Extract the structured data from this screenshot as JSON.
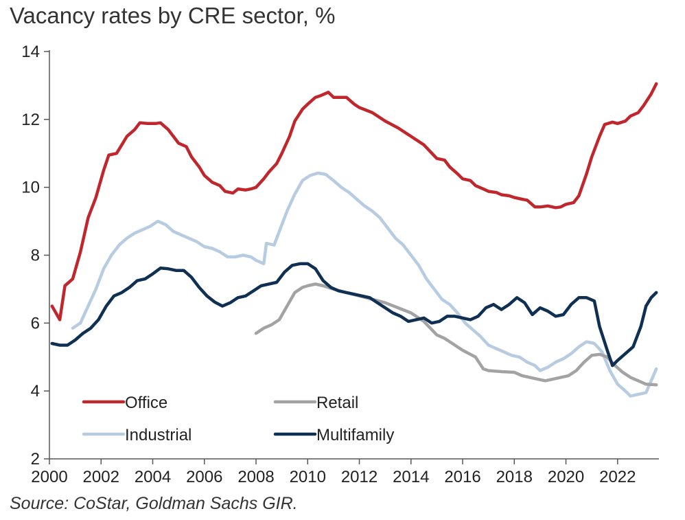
{
  "chart_data": {
    "type": "line",
    "title": "Vacancy rates by CRE sector, %",
    "source": "Source: CoStar, Goldman Sachs GIR.",
    "xlim": [
      2000,
      2023.6
    ],
    "ylim": [
      2,
      14
    ],
    "x_ticks": [
      "2000",
      "2002",
      "2004",
      "2006",
      "2008",
      "2010",
      "2012",
      "2014",
      "2016",
      "2018",
      "2020",
      "2022"
    ],
    "y_ticks": [
      "2",
      "4",
      "6",
      "8",
      "10",
      "12",
      "14"
    ],
    "legend_position": "bottom-left",
    "series": [
      {
        "name": "Office",
        "color": "#c0272d",
        "points": [
          [
            2000.1,
            6.5
          ],
          [
            2000.4,
            6.1
          ],
          [
            2000.6,
            7.1
          ],
          [
            2000.9,
            7.3
          ],
          [
            2001.2,
            8.1
          ],
          [
            2001.5,
            9.1
          ],
          [
            2001.8,
            9.7
          ],
          [
            2002.1,
            10.5
          ],
          [
            2002.3,
            10.95
          ],
          [
            2002.6,
            11.0
          ],
          [
            2002.8,
            11.25
          ],
          [
            2003.0,
            11.5
          ],
          [
            2003.3,
            11.7
          ],
          [
            2003.5,
            11.9
          ],
          [
            2003.8,
            11.88
          ],
          [
            2004.1,
            11.88
          ],
          [
            2004.3,
            11.9
          ],
          [
            2004.6,
            11.7
          ],
          [
            2004.8,
            11.5
          ],
          [
            2005.0,
            11.3
          ],
          [
            2005.3,
            11.2
          ],
          [
            2005.5,
            10.9
          ],
          [
            2005.8,
            10.6
          ],
          [
            2006.0,
            10.35
          ],
          [
            2006.3,
            10.15
          ],
          [
            2006.6,
            10.05
          ],
          [
            2006.8,
            9.88
          ],
          [
            2007.1,
            9.83
          ],
          [
            2007.3,
            9.95
          ],
          [
            2007.6,
            9.92
          ],
          [
            2007.8,
            9.95
          ],
          [
            2008.0,
            10.0
          ],
          [
            2008.3,
            10.25
          ],
          [
            2008.5,
            10.45
          ],
          [
            2008.8,
            10.7
          ],
          [
            2009.0,
            11.0
          ],
          [
            2009.3,
            11.5
          ],
          [
            2009.5,
            11.95
          ],
          [
            2009.8,
            12.3
          ],
          [
            2010.0,
            12.45
          ],
          [
            2010.3,
            12.65
          ],
          [
            2010.5,
            12.7
          ],
          [
            2010.8,
            12.8
          ],
          [
            2011.0,
            12.65
          ],
          [
            2011.3,
            12.65
          ],
          [
            2011.5,
            12.65
          ],
          [
            2011.8,
            12.45
          ],
          [
            2012.0,
            12.35
          ],
          [
            2012.5,
            12.2
          ],
          [
            2013.0,
            11.95
          ],
          [
            2013.5,
            11.75
          ],
          [
            2014.0,
            11.5
          ],
          [
            2014.5,
            11.25
          ],
          [
            2015.0,
            10.85
          ],
          [
            2015.3,
            10.8
          ],
          [
            2015.5,
            10.6
          ],
          [
            2015.8,
            10.4
          ],
          [
            2016.0,
            10.25
          ],
          [
            2016.3,
            10.2
          ],
          [
            2016.5,
            10.05
          ],
          [
            2016.8,
            9.95
          ],
          [
            2017.0,
            9.88
          ],
          [
            2017.3,
            9.85
          ],
          [
            2017.5,
            9.78
          ],
          [
            2017.8,
            9.75
          ],
          [
            2018.0,
            9.7
          ],
          [
            2018.3,
            9.65
          ],
          [
            2018.5,
            9.62
          ],
          [
            2018.8,
            9.42
          ],
          [
            2019.0,
            9.42
          ],
          [
            2019.3,
            9.45
          ],
          [
            2019.6,
            9.4
          ],
          [
            2019.8,
            9.42
          ],
          [
            2020.0,
            9.5
          ],
          [
            2020.3,
            9.55
          ],
          [
            2020.5,
            9.75
          ],
          [
            2020.8,
            10.4
          ],
          [
            2021.0,
            10.9
          ],
          [
            2021.3,
            11.5
          ],
          [
            2021.5,
            11.85
          ],
          [
            2021.8,
            11.92
          ],
          [
            2022.0,
            11.88
          ],
          [
            2022.3,
            11.95
          ],
          [
            2022.5,
            12.1
          ],
          [
            2022.8,
            12.2
          ],
          [
            2023.0,
            12.4
          ],
          [
            2023.3,
            12.75
          ],
          [
            2023.5,
            13.05
          ]
        ]
      },
      {
        "name": "Retail",
        "color": "#a3a3a3",
        "points": [
          [
            2008.0,
            5.7
          ],
          [
            2008.3,
            5.85
          ],
          [
            2008.6,
            5.95
          ],
          [
            2008.9,
            6.1
          ],
          [
            2009.2,
            6.5
          ],
          [
            2009.5,
            6.9
          ],
          [
            2009.8,
            7.05
          ],
          [
            2010.0,
            7.1
          ],
          [
            2010.3,
            7.15
          ],
          [
            2010.6,
            7.1
          ],
          [
            2011.0,
            7.0
          ],
          [
            2011.5,
            6.9
          ],
          [
            2012.0,
            6.8
          ],
          [
            2012.5,
            6.7
          ],
          [
            2013.0,
            6.6
          ],
          [
            2013.5,
            6.45
          ],
          [
            2014.0,
            6.3
          ],
          [
            2014.5,
            6.05
          ],
          [
            2015.0,
            5.65
          ],
          [
            2015.3,
            5.55
          ],
          [
            2015.6,
            5.4
          ],
          [
            2016.0,
            5.2
          ],
          [
            2016.5,
            5.0
          ],
          [
            2016.8,
            4.65
          ],
          [
            2017.0,
            4.6
          ],
          [
            2017.5,
            4.57
          ],
          [
            2018.0,
            4.55
          ],
          [
            2018.3,
            4.45
          ],
          [
            2018.6,
            4.4
          ],
          [
            2018.9,
            4.35
          ],
          [
            2019.2,
            4.3
          ],
          [
            2019.5,
            4.35
          ],
          [
            2019.8,
            4.4
          ],
          [
            2020.1,
            4.45
          ],
          [
            2020.4,
            4.6
          ],
          [
            2020.7,
            4.85
          ],
          [
            2021.0,
            5.05
          ],
          [
            2021.3,
            5.08
          ],
          [
            2021.6,
            5.0
          ],
          [
            2021.9,
            4.75
          ],
          [
            2022.2,
            4.55
          ],
          [
            2022.5,
            4.4
          ],
          [
            2022.8,
            4.3
          ],
          [
            2023.1,
            4.2
          ],
          [
            2023.5,
            4.18
          ]
        ]
      },
      {
        "name": "Industrial",
        "color": "#b8cce1",
        "points": [
          [
            2000.9,
            5.85
          ],
          [
            2001.2,
            6.0
          ],
          [
            2001.5,
            6.5
          ],
          [
            2001.8,
            7.0
          ],
          [
            2002.1,
            7.6
          ],
          [
            2002.4,
            8.0
          ],
          [
            2002.7,
            8.3
          ],
          [
            2003.0,
            8.5
          ],
          [
            2003.3,
            8.65
          ],
          [
            2003.6,
            8.75
          ],
          [
            2003.9,
            8.85
          ],
          [
            2004.2,
            9.0
          ],
          [
            2004.5,
            8.9
          ],
          [
            2004.8,
            8.7
          ],
          [
            2005.1,
            8.6
          ],
          [
            2005.4,
            8.5
          ],
          [
            2005.7,
            8.4
          ],
          [
            2006.0,
            8.25
          ],
          [
            2006.3,
            8.2
          ],
          [
            2006.6,
            8.1
          ],
          [
            2006.9,
            7.95
          ],
          [
            2007.2,
            7.95
          ],
          [
            2007.5,
            8.0
          ],
          [
            2007.8,
            7.95
          ],
          [
            2008.0,
            7.85
          ],
          [
            2008.3,
            7.75
          ],
          [
            2008.4,
            8.35
          ],
          [
            2008.7,
            8.3
          ],
          [
            2008.9,
            8.7
          ],
          [
            2009.2,
            9.3
          ],
          [
            2009.5,
            9.8
          ],
          [
            2009.8,
            10.2
          ],
          [
            2010.1,
            10.35
          ],
          [
            2010.4,
            10.42
          ],
          [
            2010.7,
            10.38
          ],
          [
            2011.0,
            10.2
          ],
          [
            2011.3,
            10.0
          ],
          [
            2011.6,
            9.85
          ],
          [
            2011.9,
            9.65
          ],
          [
            2012.2,
            9.45
          ],
          [
            2012.5,
            9.3
          ],
          [
            2012.8,
            9.1
          ],
          [
            2013.1,
            8.8
          ],
          [
            2013.4,
            8.5
          ],
          [
            2013.7,
            8.3
          ],
          [
            2014.0,
            8.0
          ],
          [
            2014.3,
            7.7
          ],
          [
            2014.6,
            7.3
          ],
          [
            2014.9,
            7.0
          ],
          [
            2015.2,
            6.7
          ],
          [
            2015.5,
            6.55
          ],
          [
            2015.8,
            6.3
          ],
          [
            2016.1,
            6.0
          ],
          [
            2016.4,
            5.8
          ],
          [
            2016.7,
            5.6
          ],
          [
            2017.0,
            5.35
          ],
          [
            2017.3,
            5.25
          ],
          [
            2017.6,
            5.15
          ],
          [
            2017.9,
            5.05
          ],
          [
            2018.2,
            5.0
          ],
          [
            2018.5,
            4.85
          ],
          [
            2018.8,
            4.75
          ],
          [
            2019.0,
            4.6
          ],
          [
            2019.3,
            4.7
          ],
          [
            2019.6,
            4.85
          ],
          [
            2019.9,
            4.95
          ],
          [
            2020.2,
            5.1
          ],
          [
            2020.5,
            5.3
          ],
          [
            2020.8,
            5.45
          ],
          [
            2021.1,
            5.4
          ],
          [
            2021.4,
            5.15
          ],
          [
            2021.7,
            4.6
          ],
          [
            2022.0,
            4.2
          ],
          [
            2022.3,
            4.0
          ],
          [
            2022.5,
            3.85
          ],
          [
            2022.8,
            3.9
          ],
          [
            2023.1,
            3.95
          ],
          [
            2023.3,
            4.3
          ],
          [
            2023.5,
            4.65
          ]
        ]
      },
      {
        "name": "Multifamily",
        "color": "#0f3052",
        "points": [
          [
            2000.1,
            5.4
          ],
          [
            2000.4,
            5.35
          ],
          [
            2000.7,
            5.35
          ],
          [
            2001.0,
            5.5
          ],
          [
            2001.3,
            5.7
          ],
          [
            2001.6,
            5.85
          ],
          [
            2001.9,
            6.1
          ],
          [
            2002.2,
            6.5
          ],
          [
            2002.5,
            6.8
          ],
          [
            2002.8,
            6.9
          ],
          [
            2003.1,
            7.05
          ],
          [
            2003.4,
            7.25
          ],
          [
            2003.7,
            7.3
          ],
          [
            2004.0,
            7.45
          ],
          [
            2004.3,
            7.62
          ],
          [
            2004.6,
            7.6
          ],
          [
            2004.9,
            7.55
          ],
          [
            2005.2,
            7.55
          ],
          [
            2005.5,
            7.35
          ],
          [
            2005.8,
            7.05
          ],
          [
            2006.1,
            6.8
          ],
          [
            2006.4,
            6.62
          ],
          [
            2006.7,
            6.5
          ],
          [
            2007.0,
            6.6
          ],
          [
            2007.3,
            6.75
          ],
          [
            2007.6,
            6.8
          ],
          [
            2007.9,
            6.95
          ],
          [
            2008.2,
            7.1
          ],
          [
            2008.5,
            7.15
          ],
          [
            2008.8,
            7.2
          ],
          [
            2009.1,
            7.5
          ],
          [
            2009.4,
            7.7
          ],
          [
            2009.7,
            7.75
          ],
          [
            2010.0,
            7.75
          ],
          [
            2010.3,
            7.6
          ],
          [
            2010.6,
            7.25
          ],
          [
            2010.9,
            7.05
          ],
          [
            2011.2,
            6.95
          ],
          [
            2011.5,
            6.9
          ],
          [
            2011.8,
            6.85
          ],
          [
            2012.1,
            6.8
          ],
          [
            2012.4,
            6.75
          ],
          [
            2012.7,
            6.6
          ],
          [
            2013.0,
            6.45
          ],
          [
            2013.3,
            6.3
          ],
          [
            2013.6,
            6.2
          ],
          [
            2013.9,
            6.05
          ],
          [
            2014.2,
            6.1
          ],
          [
            2014.5,
            6.15
          ],
          [
            2014.8,
            6.0
          ],
          [
            2015.1,
            6.05
          ],
          [
            2015.4,
            6.2
          ],
          [
            2015.7,
            6.2
          ],
          [
            2016.0,
            6.15
          ],
          [
            2016.3,
            6.1
          ],
          [
            2016.6,
            6.2
          ],
          [
            2016.9,
            6.45
          ],
          [
            2017.2,
            6.55
          ],
          [
            2017.5,
            6.4
          ],
          [
            2017.8,
            6.55
          ],
          [
            2018.1,
            6.75
          ],
          [
            2018.4,
            6.6
          ],
          [
            2018.7,
            6.25
          ],
          [
            2019.0,
            6.45
          ],
          [
            2019.3,
            6.35
          ],
          [
            2019.6,
            6.2
          ],
          [
            2019.9,
            6.25
          ],
          [
            2020.2,
            6.55
          ],
          [
            2020.5,
            6.75
          ],
          [
            2020.8,
            6.75
          ],
          [
            2021.1,
            6.65
          ],
          [
            2021.3,
            5.9
          ],
          [
            2021.6,
            5.2
          ],
          [
            2021.8,
            4.75
          ],
          [
            2022.0,
            4.9
          ],
          [
            2022.3,
            5.1
          ],
          [
            2022.6,
            5.3
          ],
          [
            2022.9,
            5.9
          ],
          [
            2023.1,
            6.5
          ],
          [
            2023.3,
            6.75
          ],
          [
            2023.5,
            6.9
          ]
        ]
      }
    ]
  }
}
